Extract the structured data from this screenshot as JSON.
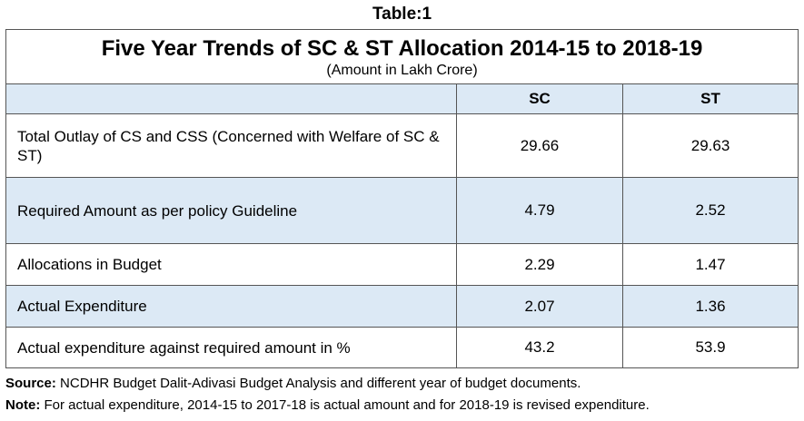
{
  "caption": "Table:1",
  "table": {
    "title": "Five Year Trends of SC & ST Allocation 2014-15 to 2018-19",
    "subtitle": "(Amount in Lakh Crore)",
    "columns": [
      "",
      "SC",
      "ST"
    ],
    "rows": [
      {
        "label": "Total Outlay of CS and CSS (Concerned with Welfare of SC & ST)",
        "sc": "29.66",
        "st": "29.63"
      },
      {
        "label": "Required Amount as per policy Guideline",
        "sc": "4.79",
        "st": "2.52"
      },
      {
        "label": "Allocations in Budget",
        "sc": "2.29",
        "st": "1.47"
      },
      {
        "label": "Actual Expenditure",
        "sc": "2.07",
        "st": "1.36"
      },
      {
        "label": "Actual expenditure against required amount in %",
        "sc": "43.2",
        "st": "53.9"
      }
    ],
    "row_shading": [
      "white",
      "shaded",
      "white",
      "shaded",
      "white"
    ],
    "colors": {
      "header_fill": "#dce9f5",
      "border": "#555555"
    }
  },
  "footnotes": {
    "source_label": "Source:",
    "source_text": "NCDHR Budget Dalit-Adivasi Budget Analysis and different year of budget documents.",
    "note_label": "Note:",
    "note_text": "For actual expenditure, 2014-15 to 2017-18 is actual amount and for 2018-19 is revised expenditure."
  }
}
